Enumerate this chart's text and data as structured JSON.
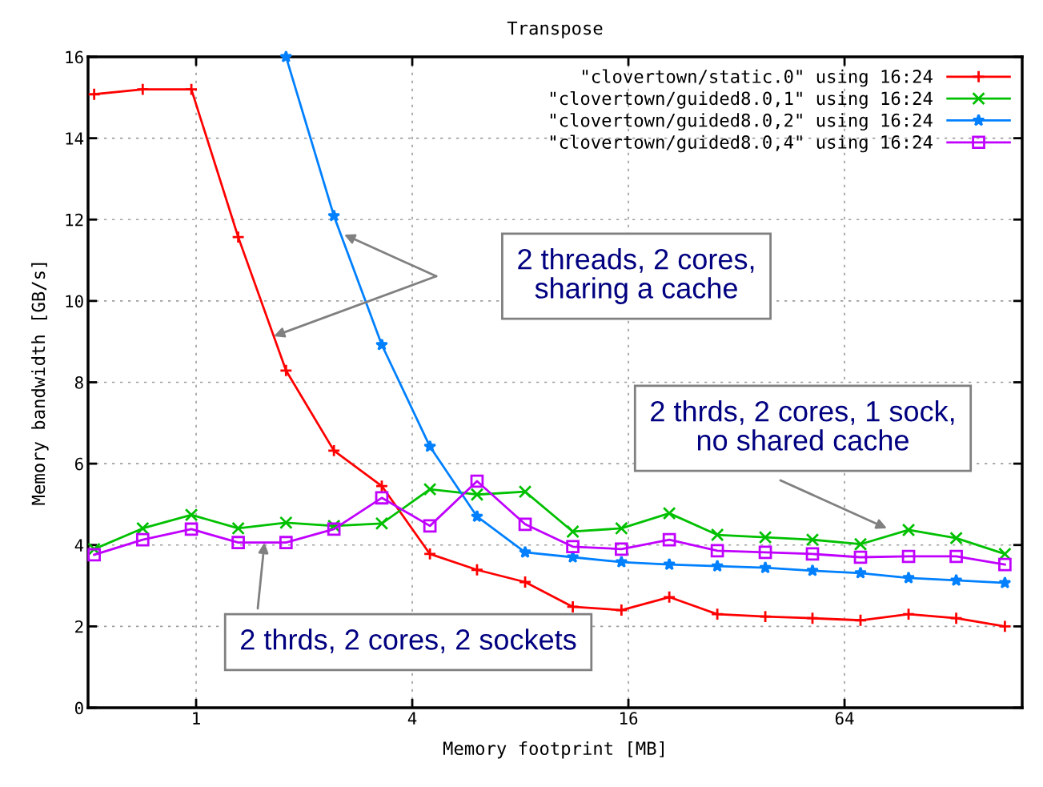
{
  "chart_data": {
    "type": "line",
    "title": "Transpose",
    "xlabel": "Memory footprint [MB]",
    "ylabel": "Memory bandwidth [GB/s]",
    "log": "x",
    "xlim": [
      0.5,
      200
    ],
    "xticks": [
      1,
      4,
      16,
      64
    ],
    "ylim": [
      0,
      16
    ],
    "yticks": [
      0,
      2,
      4,
      6,
      8,
      10,
      12,
      14,
      16
    ],
    "grid": true,
    "legend": "top right",
    "series": [
      {
        "name": "\"clovertown/static.0\" using 16:24",
        "color": "#ff0000",
        "marker": "plus",
        "x": [
          0.52,
          0.71,
          0.97,
          1.31,
          1.78,
          2.42,
          3.29,
          4.48,
          6.06,
          8.25,
          11.2,
          15.3,
          20.8,
          28.3,
          38.5,
          52.1,
          70.9,
          96.5,
          131,
          179
        ],
        "values": [
          15.08,
          15.2,
          15.2,
          11.57,
          8.29,
          6.32,
          5.45,
          3.78,
          3.39,
          3.09,
          2.48,
          2.4,
          2.72,
          2.3,
          2.24,
          2.2,
          2.15,
          2.3,
          2.2,
          2.0
        ]
      },
      {
        "name": "\"clovertown/guided8.0,1\" using 16:24",
        "color": "#00c000",
        "marker": "cross",
        "x": [
          0.52,
          0.71,
          0.97,
          1.31,
          1.78,
          2.42,
          3.29,
          4.48,
          6.06,
          8.25,
          11.2,
          15.3,
          20.8,
          28.3,
          38.5,
          52.1,
          70.9,
          96.5,
          131,
          179
        ],
        "values": [
          3.9,
          4.41,
          4.74,
          4.41,
          4.55,
          4.47,
          4.53,
          5.37,
          5.24,
          5.31,
          4.33,
          4.41,
          4.78,
          4.25,
          4.19,
          4.13,
          4.02,
          4.37,
          4.17,
          3.78
        ]
      },
      {
        "name": "\"clovertown/guided8.0,2\" using 16:24",
        "color": "#0080ff",
        "marker": "star",
        "x": [
          1.78,
          2.42,
          3.29,
          4.48,
          6.06,
          8.25,
          11.2,
          15.3,
          20.8,
          28.3,
          38.5,
          52.1,
          70.9,
          96.5,
          131,
          179
        ],
        "values": [
          16.0,
          12.09,
          8.92,
          6.42,
          4.7,
          3.82,
          3.7,
          3.58,
          3.52,
          3.48,
          3.44,
          3.37,
          3.31,
          3.19,
          3.13,
          3.07
        ]
      },
      {
        "name": "\"clovertown/guided8.0,4\" using 16:24",
        "color": "#c000ff",
        "marker": "square",
        "x": [
          0.52,
          0.71,
          0.97,
          1.31,
          1.78,
          2.42,
          3.29,
          4.48,
          6.06,
          8.25,
          11.2,
          15.3,
          20.8,
          28.3,
          38.5,
          52.1,
          70.9,
          96.5,
          131,
          179
        ],
        "values": [
          3.76,
          4.13,
          4.39,
          4.06,
          4.06,
          4.39,
          5.16,
          4.47,
          5.57,
          4.51,
          3.96,
          3.9,
          4.13,
          3.86,
          3.82,
          3.78,
          3.7,
          3.72,
          3.72,
          3.52
        ]
      }
    ],
    "annotations": [
      "2 threads, 2 cores,\nsharing a cache",
      "2 thrds, 2 cores, 1 sock,\nno shared cache",
      {
        "text": "2 thrds, 2 cores, 2 sockets",
        "x": 1.55,
        "y": 4.06
      }
    ]
  }
}
